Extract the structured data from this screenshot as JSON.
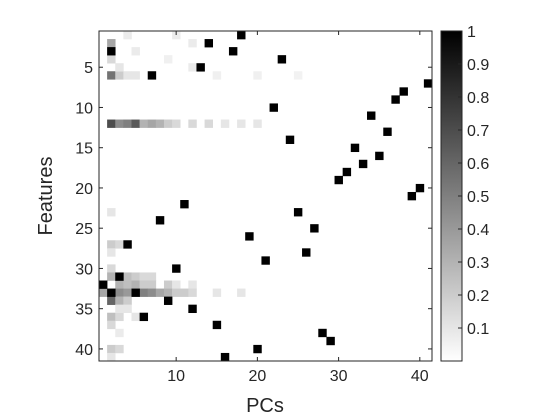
{
  "chart_data": {
    "type": "heatmap",
    "title": "",
    "xlabel": "PCs",
    "ylabel": "Features",
    "n_cols": 41,
    "n_rows": 41,
    "x_ticks": [
      10,
      20,
      30,
      40
    ],
    "y_ticks": [
      5,
      10,
      15,
      20,
      25,
      30,
      35,
      40
    ],
    "colorbar": {
      "range": [
        0,
        1
      ],
      "ticks": [
        "0.1",
        "0.2",
        "0.3",
        "0.4",
        "0.5",
        "0.6",
        "0.7",
        "0.8",
        "0.9",
        "1"
      ],
      "colormap": "gray-reversed"
    },
    "strong_cells": [
      [
        1,
        32
      ],
      [
        2,
        3
      ],
      [
        2,
        33
      ],
      [
        3,
        31
      ],
      [
        4,
        27
      ],
      [
        5,
        33
      ],
      [
        6,
        36
      ],
      [
        7,
        6
      ],
      [
        8,
        24
      ],
      [
        9,
        34
      ],
      [
        10,
        30
      ],
      [
        11,
        22
      ],
      [
        12,
        35
      ],
      [
        13,
        5
      ],
      [
        14,
        2
      ],
      [
        15,
        37
      ],
      [
        16,
        41
      ],
      [
        17,
        3
      ],
      [
        18,
        1
      ],
      [
        19,
        26
      ],
      [
        20,
        40
      ],
      [
        21,
        29
      ],
      [
        22,
        10
      ],
      [
        23,
        4
      ],
      [
        24,
        14
      ],
      [
        25,
        23
      ],
      [
        26,
        28
      ],
      [
        27,
        25
      ],
      [
        28,
        38
      ],
      [
        29,
        39
      ],
      [
        30,
        19
      ],
      [
        31,
        18
      ],
      [
        32,
        15
      ],
      [
        33,
        17
      ],
      [
        34,
        11
      ],
      [
        35,
        16
      ],
      [
        36,
        13
      ],
      [
        37,
        9
      ],
      [
        38,
        8
      ],
      [
        39,
        21
      ],
      [
        40,
        20
      ],
      [
        41,
        7
      ]
    ],
    "weak_cells": [
      [
        2,
        2,
        0.35
      ],
      [
        2,
        4,
        0.15
      ],
      [
        2,
        6,
        0.55
      ],
      [
        3,
        6,
        0.2
      ],
      [
        4,
        6,
        0.1
      ],
      [
        5,
        6,
        0.1
      ],
      [
        2,
        12,
        0.7
      ],
      [
        3,
        12,
        0.45
      ],
      [
        4,
        12,
        0.5
      ],
      [
        5,
        12,
        0.65
      ],
      [
        6,
        12,
        0.3
      ],
      [
        7,
        12,
        0.35
      ],
      [
        8,
        12,
        0.3
      ],
      [
        9,
        12,
        0.2
      ],
      [
        10,
        12,
        0.15
      ],
      [
        12,
        12,
        0.15
      ],
      [
        14,
        12,
        0.15
      ],
      [
        16,
        12,
        0.1
      ],
      [
        18,
        12,
        0.1
      ],
      [
        20,
        12,
        0.1
      ],
      [
        2,
        23,
        0.1
      ],
      [
        2,
        27,
        0.2
      ],
      [
        3,
        27,
        0.15
      ],
      [
        2,
        28,
        0.1
      ],
      [
        2,
        30,
        0.15
      ],
      [
        2,
        31,
        0.3
      ],
      [
        4,
        31,
        0.25
      ],
      [
        5,
        31,
        0.2
      ],
      [
        6,
        31,
        0.15
      ],
      [
        7,
        31,
        0.15
      ],
      [
        3,
        32,
        0.3
      ],
      [
        4,
        32,
        0.25
      ],
      [
        5,
        32,
        0.3
      ],
      [
        6,
        32,
        0.2
      ],
      [
        7,
        32,
        0.2
      ],
      [
        9,
        32,
        0.2
      ],
      [
        10,
        32,
        0.1
      ],
      [
        12,
        32,
        0.1
      ],
      [
        1,
        33,
        0.35
      ],
      [
        3,
        33,
        0.45
      ],
      [
        4,
        33,
        0.4
      ],
      [
        6,
        33,
        0.5
      ],
      [
        7,
        33,
        0.45
      ],
      [
        8,
        33,
        0.35
      ],
      [
        9,
        33,
        0.3
      ],
      [
        10,
        33,
        0.2
      ],
      [
        11,
        33,
        0.2
      ],
      [
        12,
        33,
        0.15
      ],
      [
        15,
        33,
        0.1
      ],
      [
        18,
        33,
        0.1
      ],
      [
        2,
        34,
        0.6
      ],
      [
        3,
        34,
        0.3
      ],
      [
        4,
        34,
        0.2
      ],
      [
        2,
        36,
        0.25
      ],
      [
        3,
        36,
        0.15
      ],
      [
        2,
        37,
        0.15
      ],
      [
        2,
        40,
        0.2
      ],
      [
        3,
        40,
        0.15
      ],
      [
        2,
        41,
        0.1
      ],
      [
        4,
        1,
        0.08
      ],
      [
        10,
        1,
        0.08
      ],
      [
        12,
        2,
        0.08
      ],
      [
        5,
        3,
        0.08
      ],
      [
        9,
        4,
        0.06
      ],
      [
        12,
        5,
        0.08
      ],
      [
        15,
        6,
        0.06
      ],
      [
        20,
        6,
        0.06
      ],
      [
        25,
        6,
        0.05
      ],
      [
        3,
        5,
        0.1
      ],
      [
        3,
        35,
        0.1
      ],
      [
        4,
        35,
        0.1
      ],
      [
        5,
        36,
        0.1
      ],
      [
        3,
        38,
        0.08
      ]
    ]
  }
}
